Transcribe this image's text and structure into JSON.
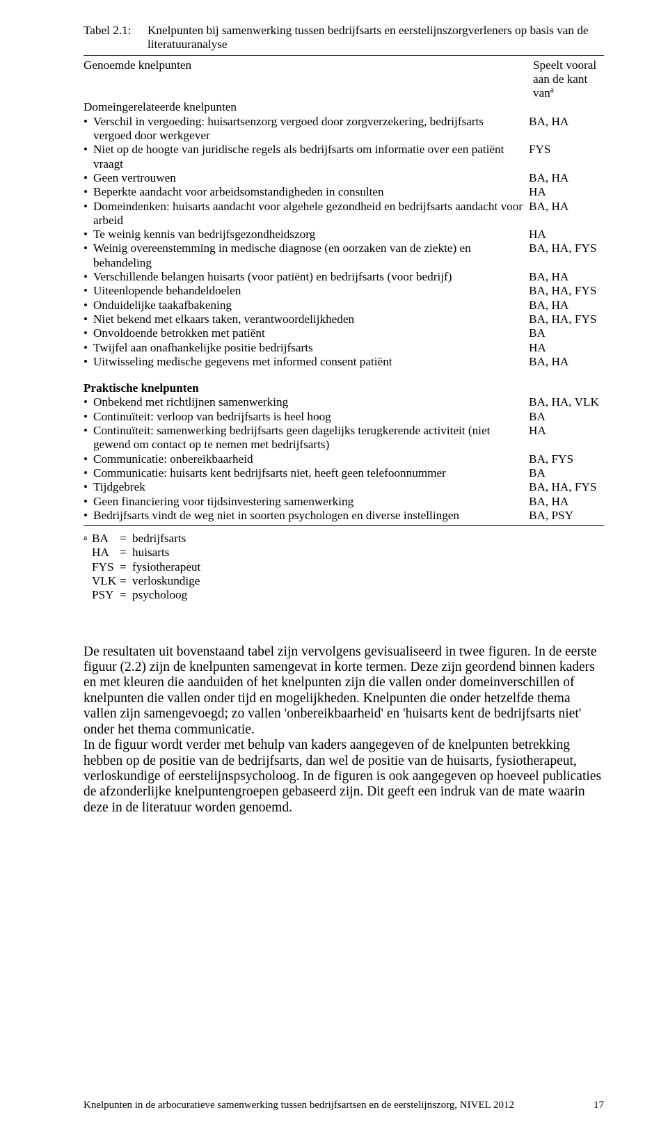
{
  "table": {
    "label": "Tabel 2.1:",
    "title": "Knelpunten bij samenwerking tussen bedrijfsarts en eerstelijnszorgverleners op basis van de literatuuranalyse",
    "col_left": "Genoemde knelpunten",
    "col_right_line1": "Speelt vooral",
    "col_right_line2_prefix": "aan de kant van",
    "col_right_line2_sup": "a"
  },
  "section1": {
    "heading": "Domeingerelateerde knelpunten",
    "items": [
      {
        "text": "Verschil in vergoeding: huisartsenzorg vergoed door zorgverzekering, bedrijfsarts vergoed door werkgever",
        "value": "BA, HA"
      },
      {
        "text": "Niet op de hoogte van juridische regels als bedrijfsarts om informatie over een patiënt vraagt",
        "value": "FYS"
      },
      {
        "text": "Geen vertrouwen",
        "value": "BA, HA"
      },
      {
        "text": "Beperkte aandacht voor arbeidsomstandigheden in consulten",
        "value": "HA"
      },
      {
        "text": "Domeindenken: huisarts aandacht voor algehele gezondheid en bedrijfsarts aandacht voor arbeid",
        "value": "BA, HA"
      },
      {
        "text": "Te weinig kennis van bedrijfsgezondheidszorg",
        "value": "HA"
      },
      {
        "text": "Weinig overeenstemming in medische diagnose (en oorzaken van de ziekte) en behandeling",
        "value": "BA, HA, FYS"
      },
      {
        "text": "Verschillende belangen huisarts (voor patiënt) en bedrijfsarts (voor bedrijf)",
        "value": "BA, HA"
      },
      {
        "text": "Uiteenlopende behandeldoelen",
        "value": "BA, HA, FYS"
      },
      {
        "text": "Onduidelijke taakafbakening",
        "value": "BA, HA"
      },
      {
        "text": "Niet bekend met elkaars taken, verantwoordelijkheden",
        "value": "BA, HA, FYS"
      },
      {
        "text": "Onvoldoende betrokken met patiënt",
        "value": "BA"
      },
      {
        "text": "Twijfel aan onafhankelijke positie bedrijfsarts",
        "value": "HA"
      },
      {
        "text": "Uitwisseling medische gegevens met informed consent patiënt",
        "value": "BA, HA"
      }
    ]
  },
  "section2": {
    "heading": "Praktische knelpunten",
    "items": [
      {
        "text": "Onbekend met richtlijnen samenwerking",
        "value": "BA, HA, VLK"
      },
      {
        "text": "Continuïteit: verloop van bedrijfsarts is heel hoog",
        "value": "BA"
      },
      {
        "text": "Continuïteit: samenwerking bedrijfsarts geen dagelijks terugkerende activiteit (niet gewend om contact op te nemen met bedrijfsarts)",
        "value": "HA"
      },
      {
        "text": "Communicatie: onbereikbaarheid",
        "value": "BA, FYS"
      },
      {
        "text": "Communicatie: huisarts kent bedrijfsarts niet, heeft geen telefoonnummer",
        "value": "BA"
      },
      {
        "text": "Tijdgebrek",
        "value": "BA, HA, FYS"
      },
      {
        "text": "Geen financiering voor tijdsinvestering samenwerking",
        "value": "BA, HA"
      },
      {
        "text": "Bedrijfsarts vindt de weg niet in soorten psychologen en diverse instellingen",
        "value": "BA, PSY"
      }
    ]
  },
  "legend": {
    "sup": "a",
    "rows": [
      {
        "code": "BA",
        "eq": "=",
        "desc": "bedrijfsarts"
      },
      {
        "code": "HA",
        "eq": "=",
        "desc": "huisarts"
      },
      {
        "code": "FYS",
        "eq": "=",
        "desc": "fysiotherapeut"
      },
      {
        "code": "VLK",
        "eq": "=",
        "desc": "verloskundige"
      },
      {
        "code": "PSY",
        "eq": "=",
        "desc": "psycholoog"
      }
    ]
  },
  "body": {
    "p1": "De resultaten uit bovenstaand tabel zijn vervolgens gevisualiseerd in twee figuren. In de eerste figuur (2.2) zijn de knelpunten samengevat in korte termen. Deze zijn geordend binnen kaders en met kleuren die aanduiden of het knelpunten zijn die vallen onder domeinverschillen of knelpunten die vallen onder tijd en mogelijkheden. Knelpunten die onder hetzelfde thema vallen zijn samengevoegd; zo vallen 'onbereikbaarheid' en 'huisarts kent de bedrijfsarts niet' onder het thema communicatie.",
    "p2": "In de figuur wordt verder met behulp van kaders aangegeven of de knelpunten betrekking hebben op de positie van de bedrijfsarts, dan wel de positie van de huisarts, fysiotherapeut, verloskundige of eerstelijnspsycholoog. In de figuren is ook aangegeven op hoeveel publicaties de afzonderlijke knelpuntengroepen gebaseerd zijn. Dit geeft een indruk van de mate waarin deze in de literatuur worden genoemd."
  },
  "footer": {
    "text": "Knelpunten in de arbocuratieve samenwerking tussen bedrijfsartsen en de eerstelijnszorg, NIVEL 2012",
    "page": "17"
  }
}
